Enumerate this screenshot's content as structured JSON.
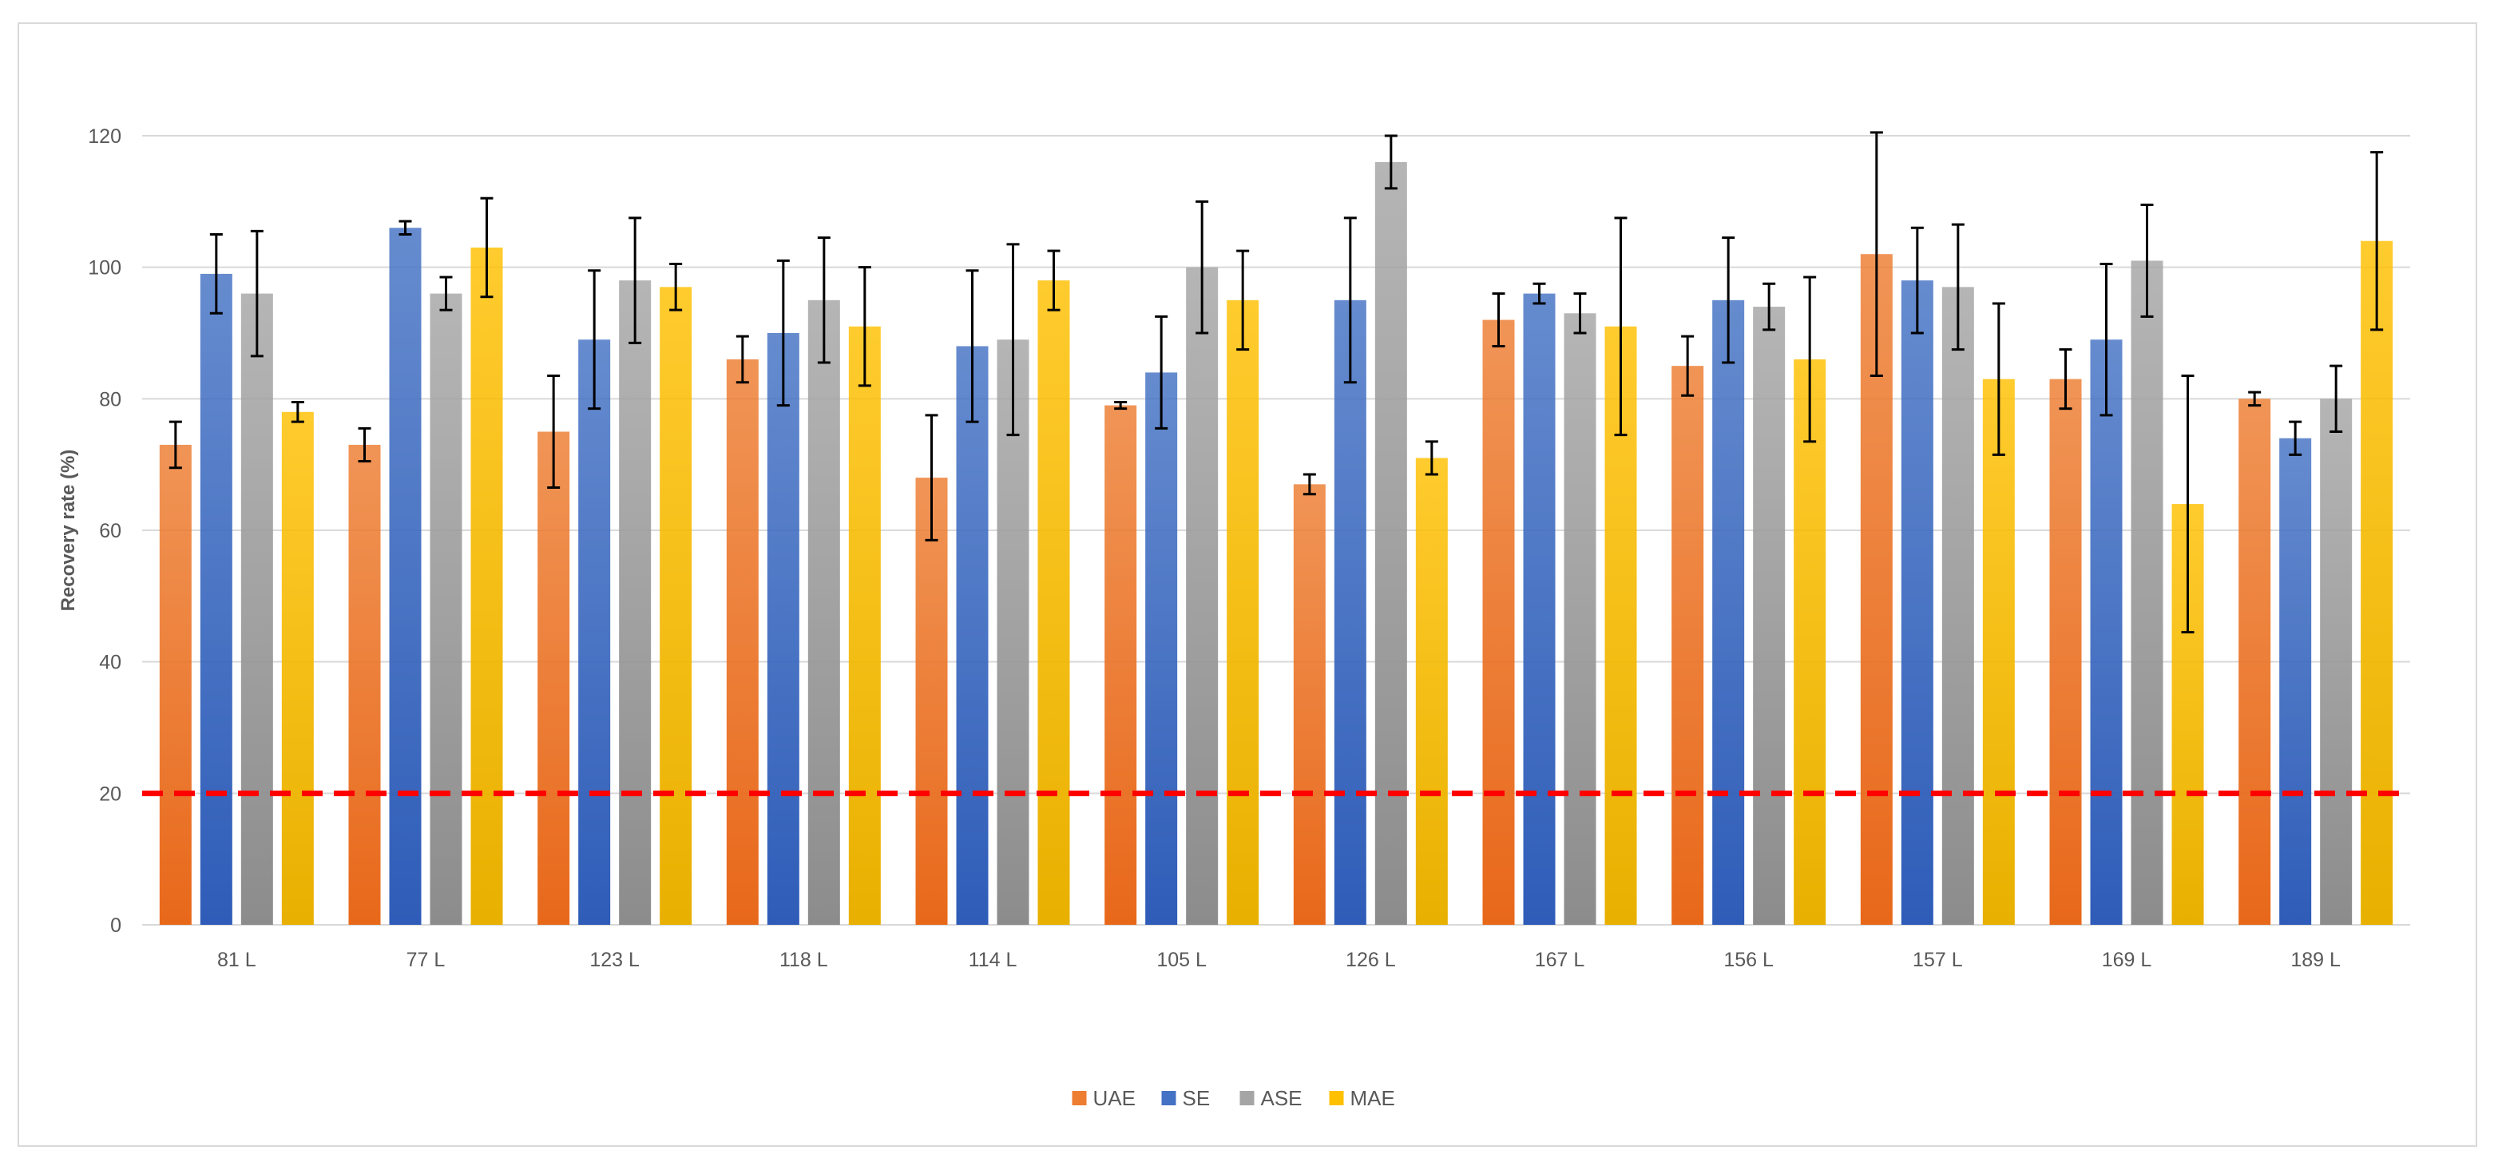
{
  "chart_data": {
    "type": "bar",
    "title": "",
    "xlabel": "",
    "ylabel": "Recovery rate (%)",
    "ylim": [
      0,
      120
    ],
    "yticks": [
      0,
      20,
      40,
      60,
      80,
      100,
      120
    ],
    "grid": true,
    "legend_position": "bottom",
    "categories": [
      "81 L",
      "77 L",
      "123 L",
      "118 L",
      "114 L",
      "105 L",
      "126 L",
      "167 L",
      "156 L",
      "157 L",
      "169 L",
      "189 L"
    ],
    "series": [
      {
        "name": "UAE",
        "color": "#ED7D31",
        "color_dark": "#E8681A",
        "values": [
          73,
          73,
          75,
          86,
          68,
          79,
          67,
          92,
          85,
          102,
          83,
          80
        ],
        "errors": [
          3.5,
          2.5,
          8.5,
          3.5,
          9.5,
          0.5,
          1.5,
          4,
          4.5,
          18.5,
          4.5,
          1
        ]
      },
      {
        "name": "SE",
        "color": "#4472C4",
        "color_dark": "#2E5CB8",
        "values": [
          99,
          106,
          89,
          90,
          88,
          84,
          95,
          96,
          95,
          98,
          89,
          74
        ],
        "errors": [
          6,
          1,
          10.5,
          11,
          11.5,
          8.5,
          12.5,
          1.5,
          9.5,
          8,
          11.5,
          2.5
        ]
      },
      {
        "name": "ASE",
        "color": "#A5A5A5",
        "color_dark": "#8C8C8C",
        "values": [
          96,
          96,
          98,
          95,
          89,
          100,
          116,
          93,
          94,
          97,
          101,
          80
        ],
        "errors": [
          9.5,
          2.5,
          9.5,
          9.5,
          14.5,
          10,
          4,
          3,
          3.5,
          9.5,
          8.5,
          5
        ]
      },
      {
        "name": "MAE",
        "color": "#FFC000",
        "color_dark": "#E8B000",
        "values": [
          78,
          103,
          97,
          91,
          98,
          95,
          71,
          91,
          86,
          83,
          64,
          104
        ],
        "errors": [
          1.5,
          7.5,
          3.5,
          9,
          4.5,
          7.5,
          2.5,
          16.5,
          12.5,
          11.5,
          19.5,
          13.5
        ]
      }
    ],
    "reference_line": {
      "value": 20,
      "color": "#FF0000",
      "style": "dashed"
    }
  }
}
